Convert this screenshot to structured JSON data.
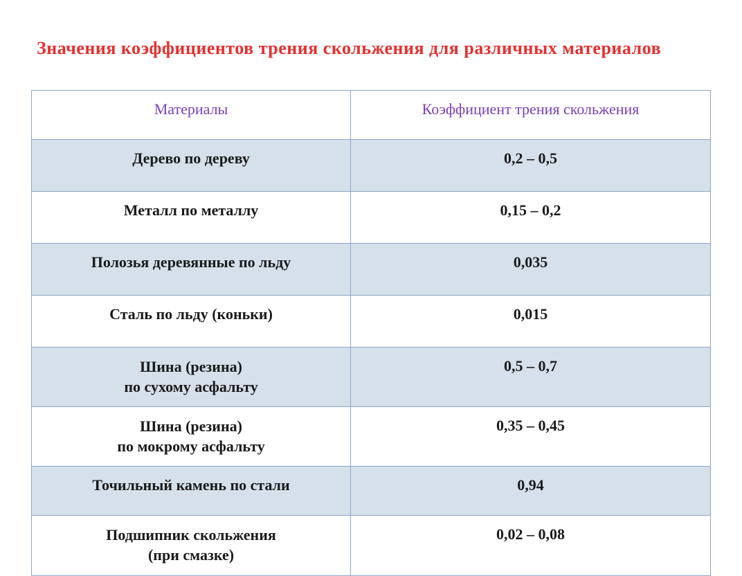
{
  "title": "Значения коэффициентов трения скольжения для различных материалов",
  "colors": {
    "title": "#e63030",
    "header_text": "#7a3fb8",
    "body_text": "#1a1a1a",
    "border": "#8da4c4",
    "shaded_bg": "#d6e0eb",
    "plain_bg": "#ffffff"
  },
  "typography": {
    "title_fontsize": 26,
    "cell_fontsize": 22,
    "font_family": "Georgia, serif"
  },
  "table": {
    "columns": [
      {
        "label": "Материалы",
        "width_pct": 47
      },
      {
        "label": "Коэффициент трения скольжения",
        "width_pct": 53
      }
    ],
    "rows": [
      {
        "material": "Дерево по дереву",
        "value": "0,2 – 0,5",
        "shaded": true
      },
      {
        "material": "Металл по металлу",
        "value": "0,15 – 0,2",
        "shaded": false
      },
      {
        "material": "Полозья деревянные по льду",
        "value": "0,035",
        "shaded": true
      },
      {
        "material": "Сталь по льду (коньки)",
        "value": "0,015",
        "shaded": false
      },
      {
        "material_line1": "Шина (резина)",
        "material_line2": "по сухому асфальту",
        "value": "0,5 – 0,7",
        "shaded": true
      },
      {
        "material_line1": "Шина (резина)",
        "material_line2": "по мокрому асфальту",
        "value": "0,35 – 0,45",
        "shaded": false
      },
      {
        "material": "Точильный камень по стали",
        "value": "0,94",
        "shaded": true
      },
      {
        "material_line1": "Подшипник скольжения",
        "material_line2": "(при смазке)",
        "value": "0,02 – 0,08",
        "shaded": false
      }
    ]
  }
}
